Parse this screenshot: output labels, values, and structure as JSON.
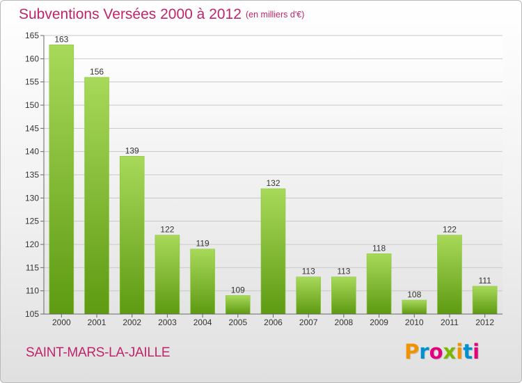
{
  "header": {
    "title": "Subventions Versées 2000 à 2012",
    "subtitle": "(en milliers d'€)"
  },
  "footer": {
    "commune": "SAINT-MARS-LA-JAILLE",
    "brand_letters": [
      "P",
      "r",
      "o",
      "x",
      "i",
      "t",
      "i"
    ],
    "brand_colors": [
      "#f39200",
      "#0090d0",
      "#e4007c",
      "#7ab800",
      "#f39200",
      "#0090d0",
      "#e4007c"
    ]
  },
  "colors": {
    "title": "#c0246b",
    "bar_top": "#a8d95a",
    "bar_bottom": "#5e9a12",
    "grid": "#c8c8c8",
    "axis": "#666666"
  },
  "chart_data": {
    "type": "bar",
    "categories": [
      "2000",
      "2001",
      "2002",
      "2003",
      "2004",
      "2005",
      "2006",
      "2007",
      "2008",
      "2009",
      "2010",
      "2011",
      "2012"
    ],
    "values": [
      163,
      156,
      139,
      122,
      119,
      109,
      132,
      113,
      113,
      118,
      108,
      122,
      111
    ],
    "yticks": [
      105,
      110,
      115,
      120,
      125,
      130,
      135,
      140,
      145,
      150,
      155,
      160,
      165
    ],
    "ylim": [
      105,
      165
    ],
    "grid": "horizontal",
    "data_labels": true
  }
}
